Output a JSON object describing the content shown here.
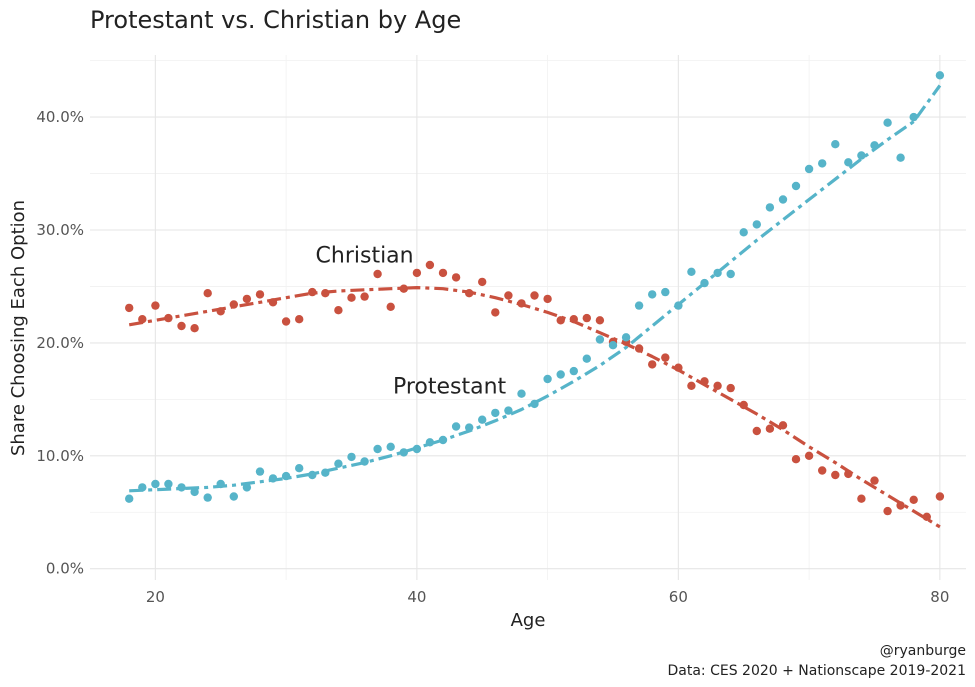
{
  "chart_data": {
    "type": "scatter",
    "title": "Protestant vs. Christian by Age",
    "xlabel": "Age",
    "ylabel": "Share Choosing Each Option",
    "xlim": [
      15,
      82
    ],
    "ylim": [
      -0.01,
      0.455
    ],
    "x_ticks": [
      20,
      40,
      60,
      80
    ],
    "x_tick_labels": [
      "20",
      "40",
      "60",
      "80"
    ],
    "y_ticks": [
      0,
      0.1,
      0.2,
      0.3,
      0.4
    ],
    "y_tick_labels": [
      "0.0%",
      "10.0%",
      "20.0%",
      "30.0%",
      "40.0%"
    ],
    "grid": true,
    "trend_lines": "dashed smoothed fit per series",
    "series": [
      {
        "name": "Christian",
        "color": "#c9513f",
        "x": [
          18,
          19,
          20,
          21,
          22,
          23,
          24,
          25,
          26,
          27,
          28,
          29,
          30,
          31,
          32,
          33,
          34,
          35,
          36,
          37,
          38,
          39,
          40,
          41,
          42,
          43,
          44,
          45,
          46,
          47,
          48,
          49,
          50,
          51,
          52,
          53,
          54,
          55,
          56,
          57,
          58,
          59,
          60,
          61,
          62,
          63,
          64,
          65,
          66,
          67,
          68,
          69,
          70,
          71,
          72,
          73,
          74,
          75,
          76,
          77,
          78,
          79,
          80
        ],
        "y": [
          0.231,
          0.221,
          0.233,
          0.222,
          0.215,
          0.213,
          0.244,
          0.228,
          0.234,
          0.239,
          0.243,
          0.236,
          0.219,
          0.221,
          0.245,
          0.244,
          0.229,
          0.24,
          0.241,
          0.261,
          0.232,
          0.248,
          0.262,
          0.269,
          0.262,
          0.258,
          0.244,
          0.254,
          0.227,
          0.242,
          0.235,
          0.242,
          0.239,
          0.22,
          0.221,
          0.222,
          0.22,
          0.201,
          0.201,
          0.195,
          0.181,
          0.187,
          0.178,
          0.162,
          0.166,
          0.162,
          0.16,
          0.145,
          0.122,
          0.124,
          0.127,
          0.097,
          0.1,
          0.087,
          0.083,
          0.084,
          0.062,
          0.078,
          0.051,
          0.056,
          0.061,
          0.046,
          0.064
        ],
        "fit_x": [
          18,
          20,
          22,
          24,
          26,
          28,
          30,
          32,
          34,
          36,
          38,
          40,
          42,
          44,
          46,
          48,
          50,
          52,
          54,
          56,
          58,
          60,
          62,
          64,
          66,
          68,
          70,
          72,
          74,
          76,
          78,
          80
        ],
        "fit_y": [
          0.216,
          0.22,
          0.224,
          0.228,
          0.232,
          0.236,
          0.24,
          0.244,
          0.246,
          0.247,
          0.248,
          0.249,
          0.248,
          0.245,
          0.24,
          0.234,
          0.227,
          0.219,
          0.209,
          0.199,
          0.188,
          0.176,
          0.163,
          0.15,
          0.137,
          0.123,
          0.108,
          0.094,
          0.079,
          0.065,
          0.051,
          0.037
        ]
      },
      {
        "name": "Protestant",
        "color": "#56b4c9",
        "x": [
          18,
          19,
          20,
          21,
          22,
          23,
          24,
          25,
          26,
          27,
          28,
          29,
          30,
          31,
          32,
          33,
          34,
          35,
          36,
          37,
          38,
          39,
          40,
          41,
          42,
          43,
          44,
          45,
          46,
          47,
          48,
          49,
          50,
          51,
          52,
          53,
          54,
          55,
          56,
          57,
          58,
          59,
          60,
          61,
          62,
          63,
          64,
          65,
          66,
          67,
          68,
          69,
          70,
          71,
          72,
          73,
          74,
          75,
          76,
          77,
          78,
          80
        ],
        "y": [
          0.062,
          0.072,
          0.075,
          0.075,
          0.072,
          0.068,
          0.063,
          0.075,
          0.064,
          0.072,
          0.086,
          0.08,
          0.082,
          0.089,
          0.083,
          0.085,
          0.093,
          0.099,
          0.095,
          0.106,
          0.108,
          0.103,
          0.106,
          0.112,
          0.114,
          0.126,
          0.125,
          0.132,
          0.138,
          0.14,
          0.155,
          0.146,
          0.168,
          0.172,
          0.175,
          0.186,
          0.203,
          0.198,
          0.205,
          0.233,
          0.243,
          0.245,
          0.233,
          0.263,
          0.253,
          0.262,
          0.261,
          0.298,
          0.305,
          0.32,
          0.327,
          0.339,
          0.354,
          0.359,
          0.376,
          0.36,
          0.366,
          0.375,
          0.395,
          0.364,
          0.4,
          0.437
        ],
        "fit_x": [
          18,
          20,
          22,
          24,
          26,
          28,
          30,
          32,
          34,
          36,
          38,
          40,
          42,
          44,
          46,
          48,
          50,
          52,
          54,
          56,
          58,
          60,
          62,
          64,
          66,
          68,
          70,
          72,
          74,
          76,
          78,
          80
        ],
        "fit_y": [
          0.069,
          0.07,
          0.071,
          0.072,
          0.074,
          0.077,
          0.08,
          0.084,
          0.089,
          0.094,
          0.1,
          0.107,
          0.114,
          0.122,
          0.131,
          0.141,
          0.153,
          0.166,
          0.18,
          0.196,
          0.215,
          0.234,
          0.253,
          0.272,
          0.291,
          0.309,
          0.327,
          0.345,
          0.363,
          0.38,
          0.396,
          0.428
        ]
      }
    ],
    "annotations": [
      {
        "text": "Christian",
        "x": 36,
        "y": 0.271
      },
      {
        "text": "Protestant",
        "x": 42.5,
        "y": 0.155
      }
    ],
    "caption": [
      "@ryanburge",
      "Data: CES 2020 + Nationscape 2019-2021"
    ]
  }
}
